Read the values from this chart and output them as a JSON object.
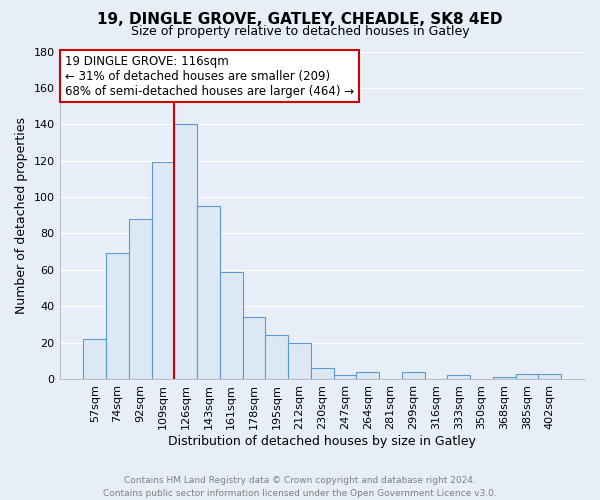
{
  "title": "19, DINGLE GROVE, GATLEY, CHEADLE, SK8 4ED",
  "subtitle": "Size of property relative to detached houses in Gatley",
  "xlabel": "Distribution of detached houses by size in Gatley",
  "ylabel": "Number of detached properties",
  "bar_labels": [
    "57sqm",
    "74sqm",
    "92sqm",
    "109sqm",
    "126sqm",
    "143sqm",
    "161sqm",
    "178sqm",
    "195sqm",
    "212sqm",
    "230sqm",
    "247sqm",
    "264sqm",
    "281sqm",
    "299sqm",
    "316sqm",
    "333sqm",
    "350sqm",
    "368sqm",
    "385sqm",
    "402sqm"
  ],
  "bar_values": [
    22,
    69,
    88,
    119,
    140,
    95,
    59,
    34,
    24,
    20,
    6,
    2,
    4,
    0,
    4,
    0,
    2,
    0,
    1,
    3,
    3
  ],
  "bar_color": "#dde8f5",
  "bar_edge_color": "#5b9bd5",
  "background_color": "#e8eef7",
  "grid_color": "#ffffff",
  "ylim": [
    0,
    180
  ],
  "yticks": [
    0,
    20,
    40,
    60,
    80,
    100,
    120,
    140,
    160,
    180
  ],
  "property_line_x": 3.5,
  "property_line_color": "#cc0000",
  "annotation_title": "19 DINGLE GROVE: 116sqm",
  "annotation_line1": "← 31% of detached houses are smaller (209)",
  "annotation_line2": "68% of semi-detached houses are larger (464) →",
  "annotation_box_color": "#ffffff",
  "annotation_box_edge_color": "#cc0000",
  "footer_line1": "Contains HM Land Registry data © Crown copyright and database right 2024.",
  "footer_line2": "Contains public sector information licensed under the Open Government Licence v3.0.",
  "footer_color": "#808080",
  "title_fontsize": 11,
  "subtitle_fontsize": 9,
  "axis_label_fontsize": 9,
  "tick_fontsize": 8,
  "annotation_fontsize": 8.5,
  "footer_fontsize": 6.5
}
